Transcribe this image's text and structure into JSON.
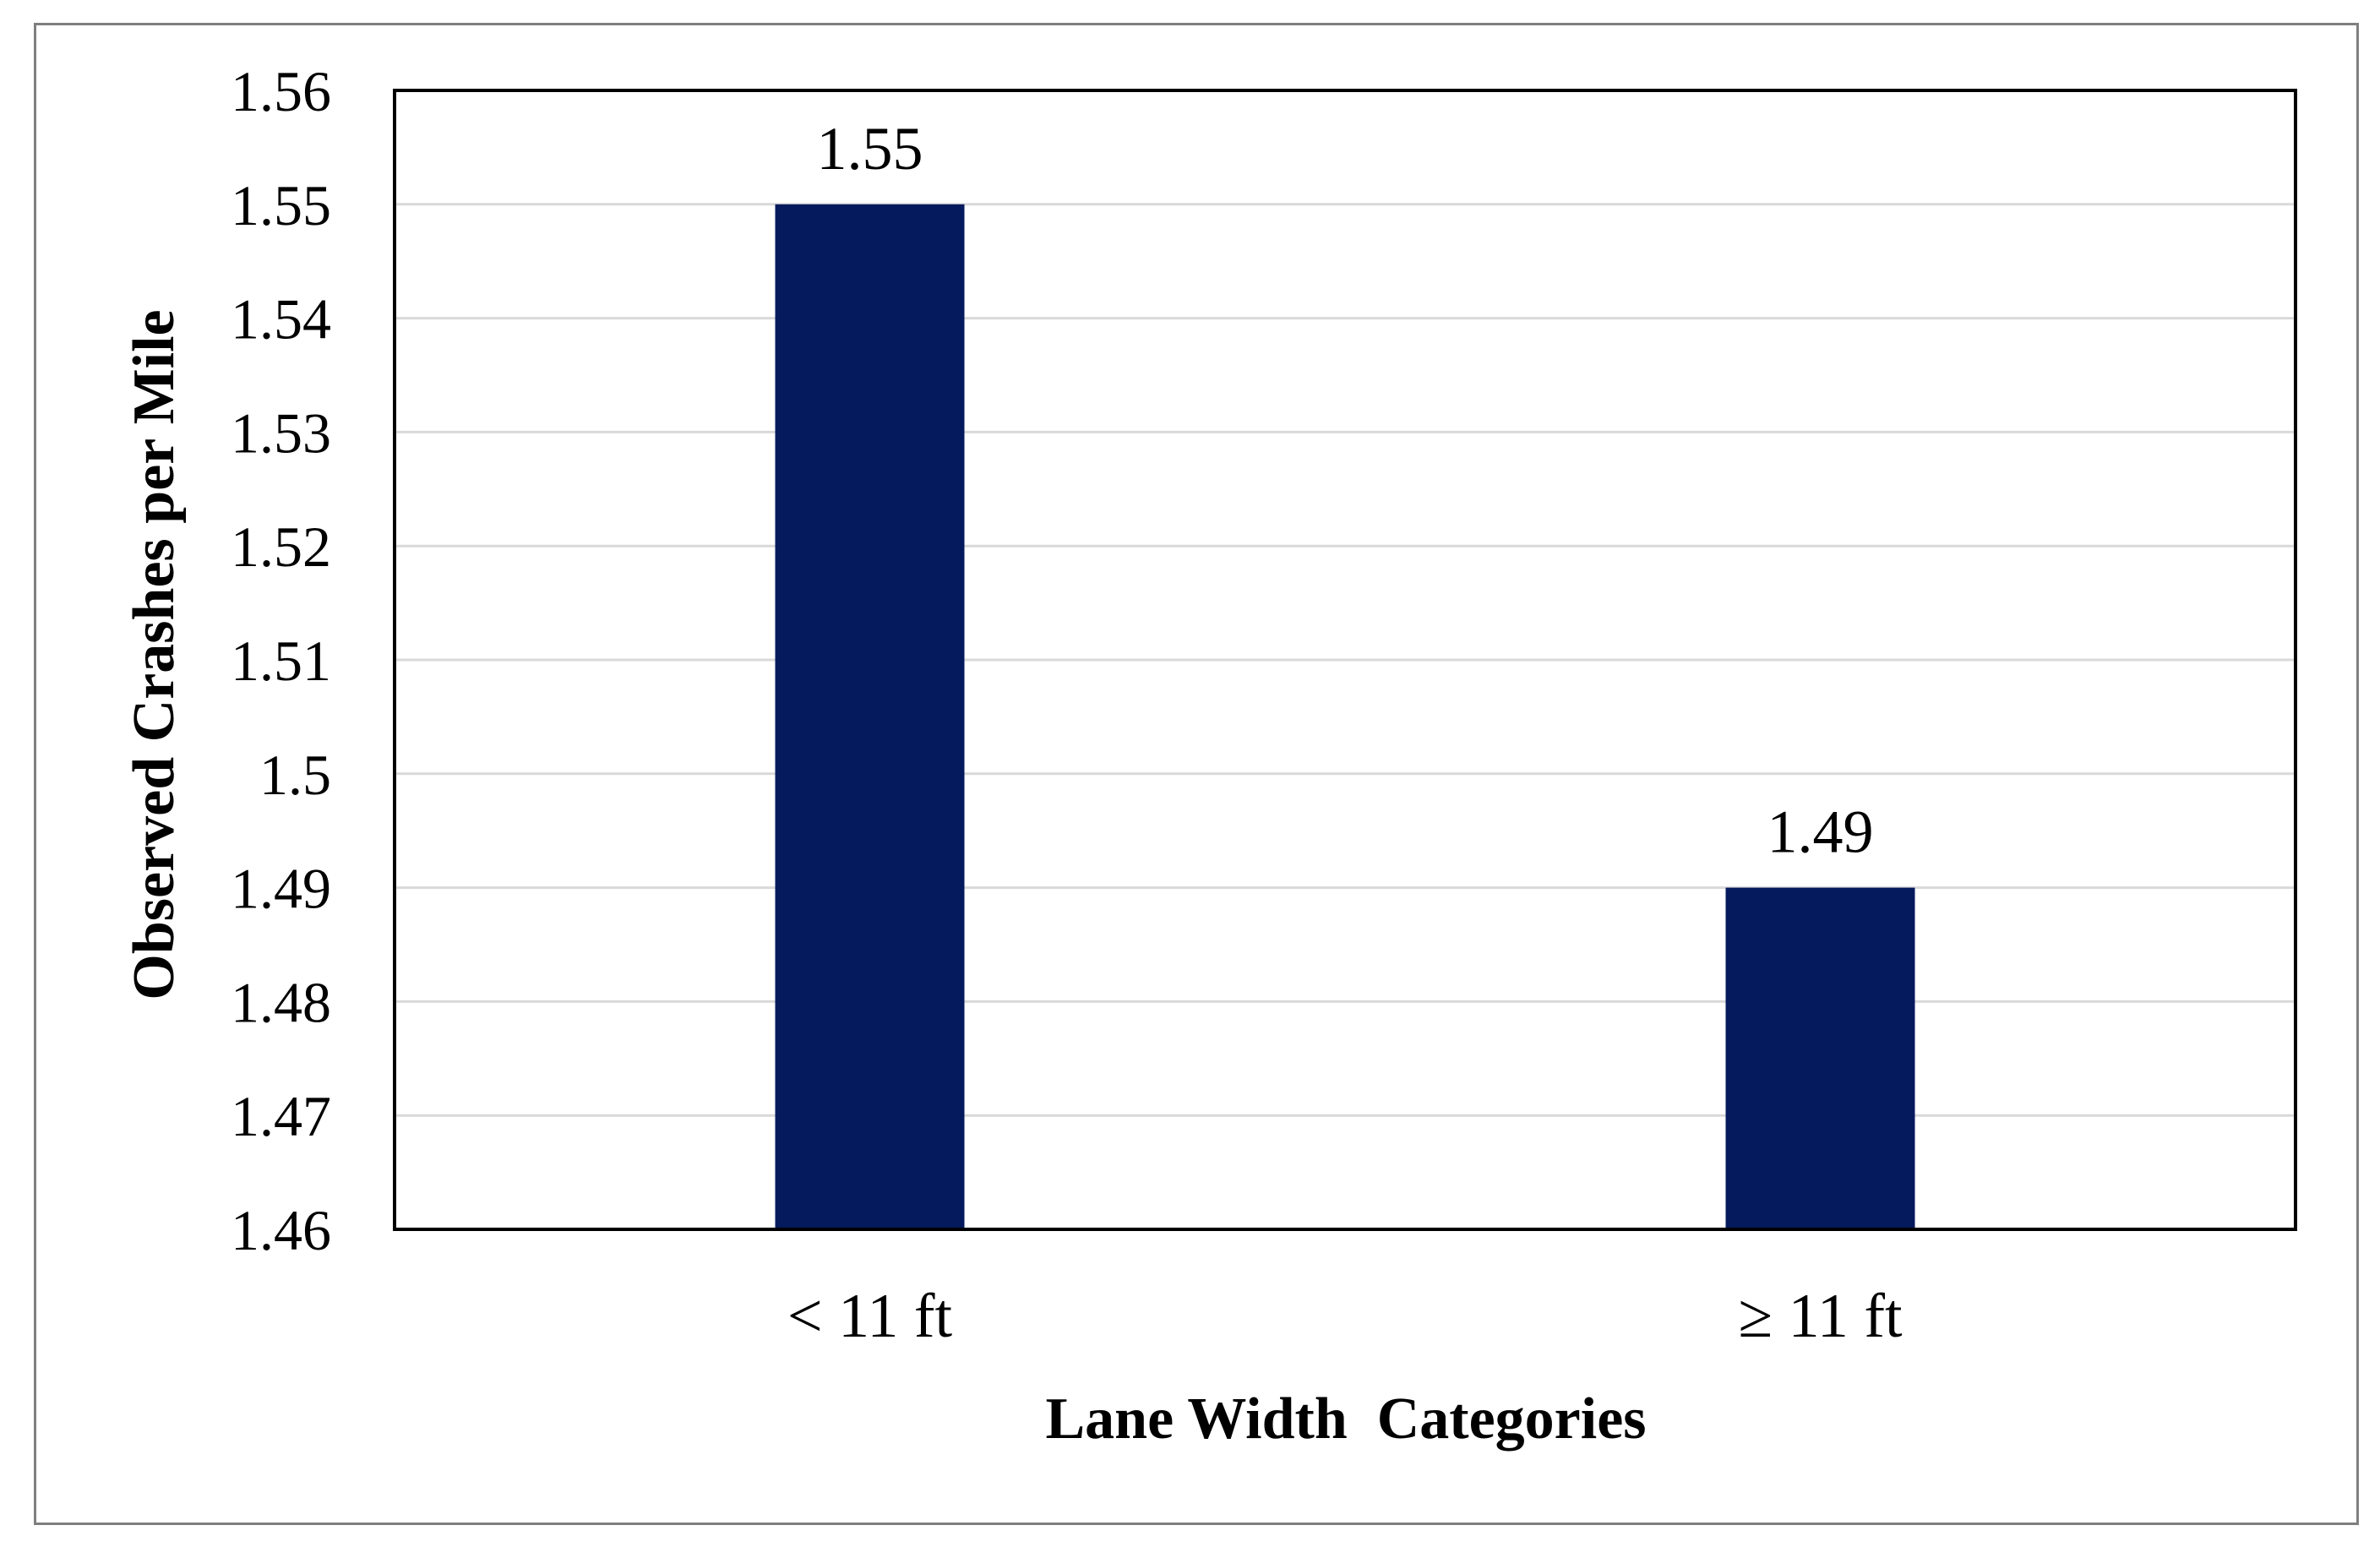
{
  "chart_data": {
    "type": "bar",
    "title": "",
    "xlabel": "Lane Width  Categories",
    "ylabel": "Observed Crashes per Mile",
    "categories": [
      "< 11 ft",
      "≥ 11 ft"
    ],
    "values": [
      1.55,
      1.49
    ],
    "value_labels": [
      "1.55",
      "1.49"
    ],
    "ylim": [
      1.46,
      1.56
    ],
    "yticks": [
      1.46,
      1.47,
      1.48,
      1.49,
      1.5,
      1.51,
      1.52,
      1.53,
      1.54,
      1.55,
      1.56
    ],
    "ytick_labels": [
      "1.46",
      "1.47",
      "1.48",
      "1.49",
      "1.5",
      "1.51",
      "1.52",
      "1.53",
      "1.54",
      "1.55",
      "1.56"
    ],
    "grid": true,
    "legend": "none",
    "colors": {
      "bar": "#041a5c",
      "grid": "#d9d9d9",
      "plot_border": "#000000",
      "frame_border": "#7f7f7f"
    }
  }
}
